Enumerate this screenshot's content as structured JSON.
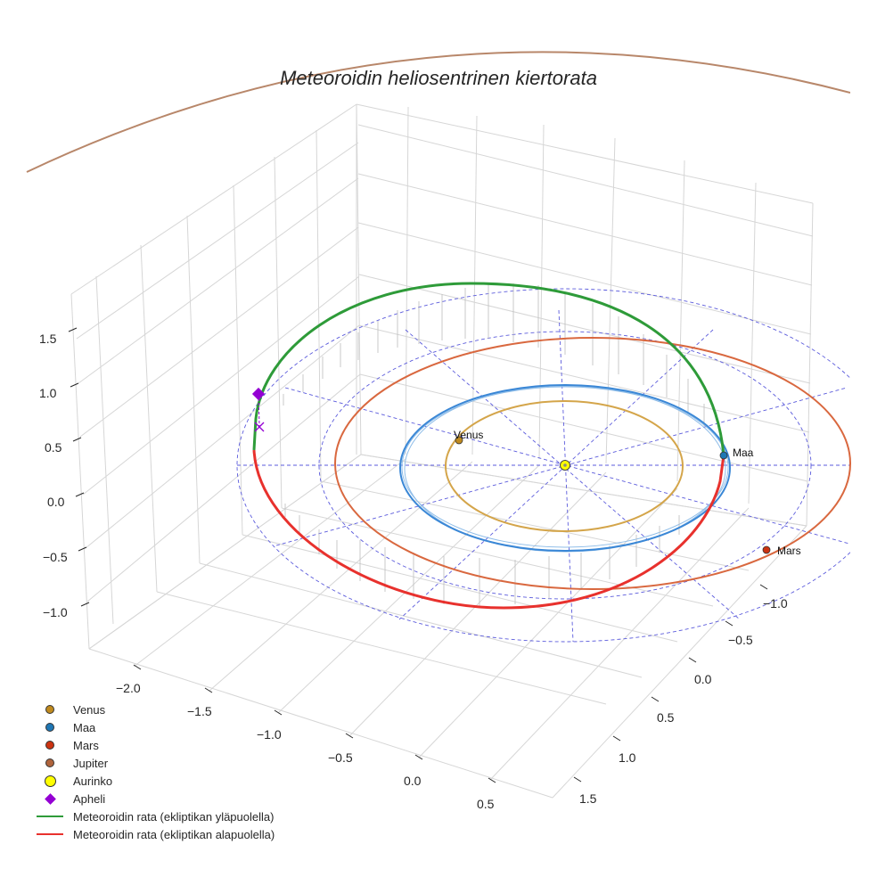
{
  "chart_data": {
    "type": "line3d",
    "title": "Meteoroidin heliosentrinen kiertorata",
    "axes": {
      "x": {
        "range": [
          -2.4,
          0.8
        ],
        "ticks": [
          -2.0,
          -1.5,
          -1.0,
          -0.5,
          0.0,
          0.5
        ],
        "tick_labels": [
          "−2.0",
          "−1.5",
          "−1.0",
          "−0.5",
          "0.0",
          "0.5"
        ]
      },
      "y": {
        "range": [
          -1.4,
          1.8
        ],
        "ticks": [
          -1.0,
          -0.5,
          0.0,
          0.5,
          1.0,
          1.5
        ],
        "tick_labels": [
          "−1.0",
          "−0.5",
          "0.0",
          "0.5",
          "1.0",
          "1.5"
        ]
      },
      "z": {
        "range": [
          -1.4,
          1.8
        ],
        "ticks": [
          -1.0,
          -0.5,
          0.0,
          0.5,
          1.0,
          1.5
        ],
        "tick_labels": [
          "−1.0",
          "−0.5",
          "0.0",
          "0.5",
          "1.0",
          "1.5"
        ]
      },
      "grid": true
    },
    "planets": [
      {
        "name": "Venus",
        "label": "Venus",
        "orbit_radius_au": 0.72,
        "color": "#c08a1e",
        "orbit_color": "#d4a54a"
      },
      {
        "name": "Maa",
        "label": "Maa",
        "orbit_radius_au": 1.0,
        "color": "#1f77b4",
        "orbit_color": "#3a87d6"
      },
      {
        "name": "Mars",
        "label": "Mars",
        "orbit_radius_au": 1.52,
        "color": "#cc3311",
        "orbit_color": "#d9683f"
      },
      {
        "name": "Jupiter",
        "label": "",
        "orbit_radius_au": 5.2,
        "color": "#b0643c",
        "orbit_color": "#b8876a"
      }
    ],
    "sun": {
      "name": "Aurinko",
      "color": "#ffff00"
    },
    "aphelion": {
      "name": "Apheli",
      "color": "#9400d3"
    },
    "meteoroid_orbit": {
      "above_label": "Meteoroidin rata (ekliptikan yläpuolella)",
      "below_label": "Meteoroidin rata (ekliptikan alapuolella)",
      "above_color": "#2e9b39",
      "below_color": "#e8312d",
      "grid_line_color": "#5b5bdc"
    },
    "legend": [
      {
        "label": "Venus",
        "symbol": "dot",
        "color": "#c08a1e"
      },
      {
        "label": "Maa",
        "symbol": "dot",
        "color": "#1f77b4"
      },
      {
        "label": "Mars",
        "symbol": "dot",
        "color": "#cc3311"
      },
      {
        "label": "Jupiter",
        "symbol": "dot",
        "color": "#b0643c"
      },
      {
        "label": "Aurinko",
        "symbol": "sun",
        "color": "#ffff00"
      },
      {
        "label": "Apheli",
        "symbol": "diamond",
        "color": "#9400d3"
      },
      {
        "label": "Meteoroidin rata (ekliptikan yläpuolella)",
        "symbol": "line",
        "color": "#2e9b39"
      },
      {
        "label": "Meteoroidin rata (ekliptikan alapuolella)",
        "symbol": "line",
        "color": "#e8312d"
      }
    ]
  }
}
